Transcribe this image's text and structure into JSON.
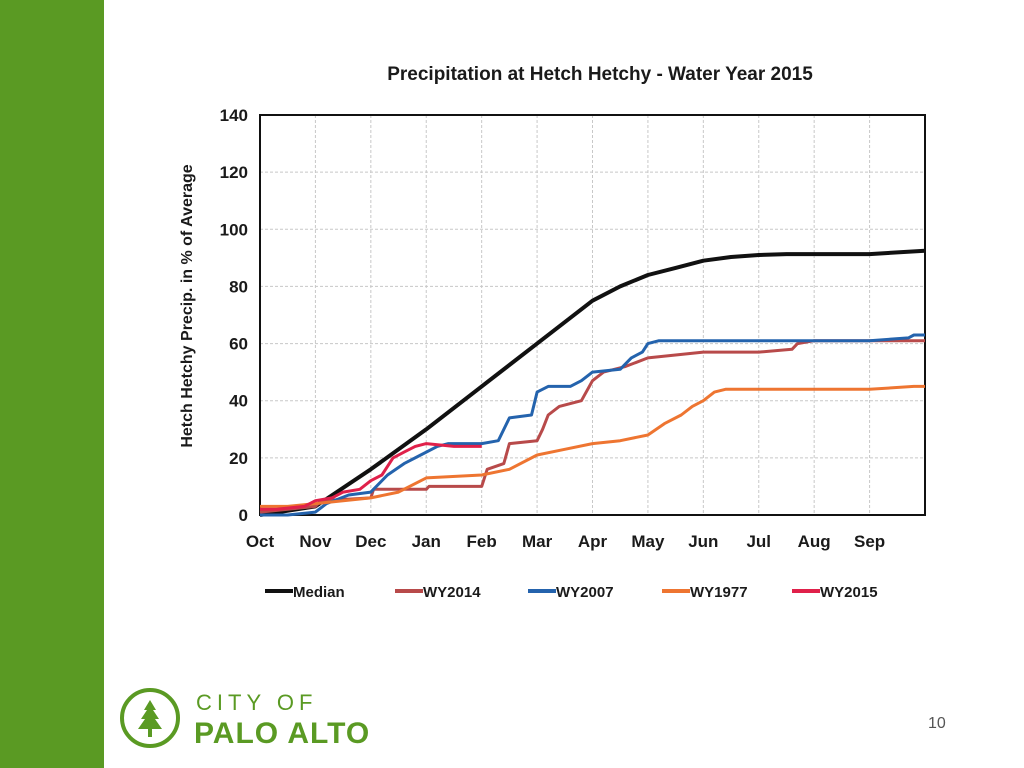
{
  "slide": {
    "page_number": "10",
    "logo_line1": "CITY OF",
    "logo_line2": "PALO ALTO",
    "accent_color": "#5a9a23"
  },
  "chart_data": {
    "type": "line",
    "title": "Precipitation at Hetch Hetchy - Water Year 2015",
    "ylabel": "Hetch Hetchy Precip. in % of Average",
    "xlabel": "",
    "categories": [
      "Oct",
      "Nov",
      "Dec",
      "Jan",
      "Feb",
      "Mar",
      "Apr",
      "May",
      "Jun",
      "Jul",
      "Aug",
      "Sep"
    ],
    "xlim": [
      0,
      12
    ],
    "ylim": [
      0,
      140
    ],
    "yticks": [
      0,
      20,
      40,
      60,
      80,
      100,
      120,
      140
    ],
    "grid": true,
    "legend_position": "bottom",
    "series": [
      {
        "name": "Median",
        "color": "#111111",
        "points": [
          [
            0,
            0
          ],
          [
            1,
            3
          ],
          [
            2,
            16
          ],
          [
            3,
            30
          ],
          [
            4,
            45
          ],
          [
            5,
            60
          ],
          [
            6,
            75
          ],
          [
            6.5,
            80
          ],
          [
            7,
            84
          ],
          [
            7.5,
            86.5
          ],
          [
            8,
            89
          ],
          [
            8.5,
            90.3
          ],
          [
            9,
            91
          ],
          [
            9.5,
            91.3
          ],
          [
            10,
            91.3
          ],
          [
            11,
            91.3
          ],
          [
            12,
            92.5
          ]
        ]
      },
      {
        "name": "WY2014",
        "color": "#b84a4a",
        "points": [
          [
            0,
            1
          ],
          [
            1,
            3
          ],
          [
            1.1,
            5
          ],
          [
            2,
            6
          ],
          [
            2.05,
            9
          ],
          [
            3,
            9
          ],
          [
            3.05,
            10
          ],
          [
            4,
            10
          ],
          [
            4.1,
            16
          ],
          [
            4.4,
            18
          ],
          [
            4.5,
            25
          ],
          [
            5,
            26
          ],
          [
            5.1,
            30
          ],
          [
            5.2,
            35
          ],
          [
            5.4,
            38
          ],
          [
            5.8,
            40
          ],
          [
            6,
            47
          ],
          [
            6.2,
            50
          ],
          [
            6.6,
            52
          ],
          [
            7,
            55
          ],
          [
            7.5,
            56
          ],
          [
            8,
            57
          ],
          [
            9,
            57
          ],
          [
            9.6,
            58
          ],
          [
            9.7,
            60
          ],
          [
            10,
            61
          ],
          [
            11,
            61
          ],
          [
            12,
            61
          ]
        ]
      },
      {
        "name": "WY2007",
        "color": "#2463ad",
        "points": [
          [
            0,
            0
          ],
          [
            0.5,
            0
          ],
          [
            1,
            1
          ],
          [
            1.2,
            4
          ],
          [
            1.6,
            7
          ],
          [
            2,
            8
          ],
          [
            2.3,
            14
          ],
          [
            2.6,
            18
          ],
          [
            2.9,
            21
          ],
          [
            3.2,
            24
          ],
          [
            3.4,
            25
          ],
          [
            4,
            25
          ],
          [
            4.3,
            26
          ],
          [
            4.5,
            34
          ],
          [
            4.9,
            35
          ],
          [
            5,
            43
          ],
          [
            5.2,
            45
          ],
          [
            5.6,
            45
          ],
          [
            5.8,
            47
          ],
          [
            6,
            50
          ],
          [
            6.5,
            51
          ],
          [
            6.7,
            55
          ],
          [
            6.9,
            57
          ],
          [
            7,
            60
          ],
          [
            7.2,
            61
          ],
          [
            8,
            61
          ],
          [
            9,
            61
          ],
          [
            10,
            61
          ],
          [
            11,
            61
          ],
          [
            11.7,
            62
          ],
          [
            11.8,
            63
          ],
          [
            12,
            63
          ]
        ]
      },
      {
        "name": "WY1977",
        "color": "#ee7531",
        "points": [
          [
            0,
            3
          ],
          [
            0.5,
            3
          ],
          [
            1,
            4
          ],
          [
            2,
            6
          ],
          [
            2.5,
            8
          ],
          [
            3,
            13
          ],
          [
            4,
            14
          ],
          [
            4.5,
            16
          ],
          [
            5,
            21
          ],
          [
            5.5,
            23
          ],
          [
            6,
            25
          ],
          [
            6.5,
            26
          ],
          [
            7,
            28
          ],
          [
            7.3,
            32
          ],
          [
            7.6,
            35
          ],
          [
            7.8,
            38
          ],
          [
            8,
            40
          ],
          [
            8.2,
            43
          ],
          [
            8.4,
            44
          ],
          [
            9,
            44
          ],
          [
            10,
            44
          ],
          [
            11,
            44
          ],
          [
            11.8,
            45
          ],
          [
            12,
            45
          ]
        ]
      },
      {
        "name": "WY2015",
        "color": "#e0204a",
        "points": [
          [
            0,
            2
          ],
          [
            0.3,
            2
          ],
          [
            0.8,
            3
          ],
          [
            1,
            5
          ],
          [
            1.3,
            6
          ],
          [
            1.5,
            8
          ],
          [
            1.8,
            9
          ],
          [
            2,
            12
          ],
          [
            2.2,
            14
          ],
          [
            2.4,
            20
          ],
          [
            2.6,
            22
          ],
          [
            2.8,
            24
          ],
          [
            3,
            25
          ],
          [
            3.5,
            24
          ],
          [
            4,
            24
          ]
        ]
      }
    ]
  }
}
